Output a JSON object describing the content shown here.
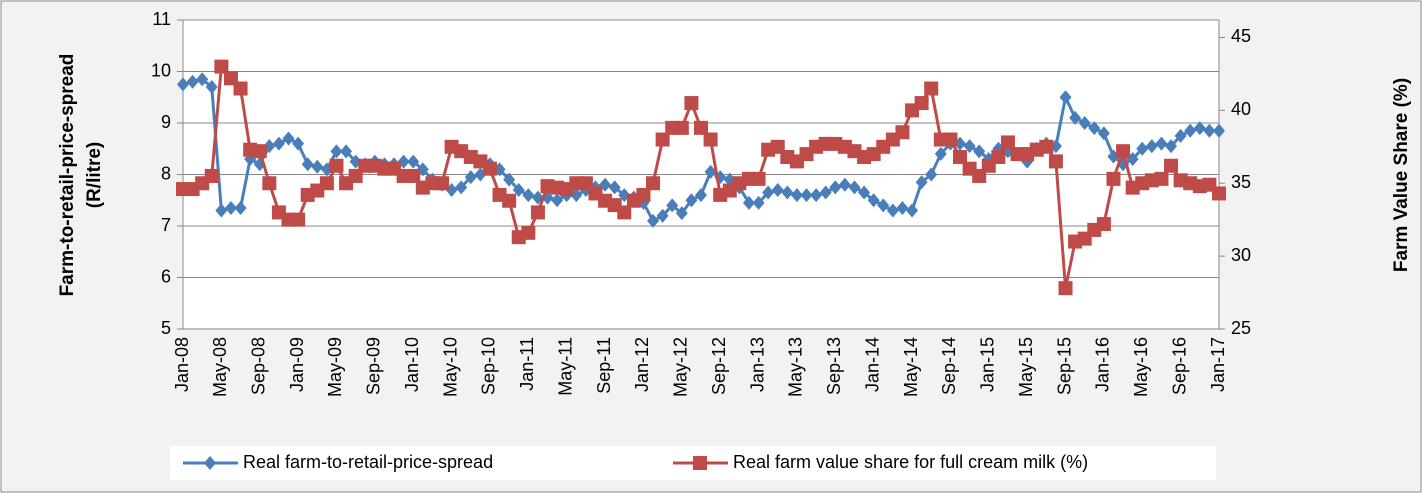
{
  "chart_data": {
    "type": "line",
    "categories": [
      "Jan-08",
      null,
      null,
      null,
      "May-08",
      null,
      null,
      null,
      "Sep-08",
      null,
      null,
      null,
      "Jan-09",
      null,
      null,
      null,
      "May-09",
      null,
      null,
      null,
      "Sep-09",
      null,
      null,
      null,
      "Jan-10",
      null,
      null,
      null,
      "May-10",
      null,
      null,
      null,
      "Sep-10",
      null,
      null,
      null,
      "Jan-11",
      null,
      null,
      null,
      "May-11",
      null,
      null,
      null,
      "Sep-11",
      null,
      null,
      null,
      "Jan-12",
      null,
      null,
      null,
      "May-12",
      null,
      null,
      null,
      "Sep-12",
      null,
      null,
      null,
      "Jan-13",
      null,
      null,
      null,
      "May-13",
      null,
      null,
      null,
      "Sep-13",
      null,
      null,
      null,
      "Jan-14",
      null,
      null,
      null,
      "May-14",
      null,
      null,
      null,
      "Sep-14",
      null,
      null,
      null,
      "Jan-15",
      null,
      null,
      null,
      "May-15",
      null,
      null,
      null,
      "Sep-15",
      null,
      null,
      null,
      "Jan-16",
      null,
      null,
      null,
      "May-16",
      null,
      null,
      null,
      "Sep-16",
      null,
      null,
      null,
      "Jan-17"
    ],
    "series": [
      {
        "name": "Real farm-to-retail-price-spread",
        "color": "#4a7ebb",
        "marker": "diamond",
        "axis": "y",
        "values": [
          9.75,
          9.8,
          9.85,
          9.7,
          7.3,
          7.35,
          7.35,
          8.3,
          8.2,
          8.55,
          8.6,
          8.7,
          8.6,
          8.2,
          8.15,
          8.1,
          8.45,
          8.45,
          8.25,
          8.2,
          8.25,
          8.2,
          8.2,
          8.25,
          8.25,
          8.1,
          7.9,
          7.8,
          7.7,
          7.75,
          7.95,
          8.0,
          8.2,
          8.1,
          7.9,
          7.7,
          7.6,
          7.55,
          7.55,
          7.5,
          7.6,
          7.6,
          7.7,
          7.75,
          7.8,
          7.75,
          7.6,
          7.55,
          7.45,
          7.1,
          7.2,
          7.4,
          7.25,
          7.5,
          7.6,
          8.05,
          7.95,
          7.9,
          7.75,
          7.45,
          7.45,
          7.65,
          7.7,
          7.65,
          7.6,
          7.6,
          7.6,
          7.65,
          7.75,
          7.8,
          7.75,
          7.65,
          7.5,
          7.4,
          7.3,
          7.35,
          7.3,
          7.85,
          8.0,
          8.4,
          8.6,
          8.6,
          8.55,
          8.45,
          8.3,
          8.5,
          8.45,
          8.4,
          8.25,
          8.5,
          8.6,
          8.55,
          9.5,
          9.1,
          9.0,
          8.9,
          8.8,
          8.35,
          8.2,
          8.3,
          8.5,
          8.55,
          8.6,
          8.55,
          8.75,
          8.85,
          8.9,
          8.85,
          8.85
        ]
      },
      {
        "name": "Real farm value share for full cream milk (%)",
        "color": "#be4b48",
        "marker": "square",
        "axis": "y2",
        "values": [
          34.6,
          34.6,
          35,
          35.5,
          43,
          42.2,
          41.5,
          37.3,
          37.2,
          35,
          33,
          32.5,
          32.5,
          34.2,
          34.5,
          35,
          36.2,
          35,
          35.5,
          36.2,
          36.2,
          36,
          36,
          35.5,
          35.5,
          34.7,
          35,
          35,
          37.5,
          37.2,
          36.8,
          36.5,
          36,
          34.2,
          33.8,
          31.3,
          31.6,
          33,
          34.8,
          34.7,
          34.6,
          35,
          35,
          34.3,
          33.8,
          33.5,
          33,
          33.8,
          34.2,
          35,
          38,
          38.8,
          38.8,
          40.5,
          38.8,
          38,
          34.2,
          34.5,
          35,
          35.3,
          35.3,
          37.3,
          37.5,
          36.8,
          36.5,
          37,
          37.5,
          37.7,
          37.7,
          37.5,
          37.2,
          36.8,
          37,
          37.5,
          38,
          38.5,
          40,
          40.5,
          41.5,
          38,
          38,
          36.8,
          36,
          35.5,
          36.2,
          36.8,
          37.8,
          37,
          37,
          37.3,
          37.5,
          36.5,
          27.8,
          31,
          31.2,
          31.8,
          32.2,
          35.3,
          37.2,
          34.7,
          35,
          35.2,
          35.3,
          36.2,
          35.2,
          35,
          34.8,
          34.9,
          34.3
        ]
      }
    ],
    "ylabel": [
      "Farm-to-retail-price-spread",
      "(R/litre)"
    ],
    "y2label": "Farm Value Share (%)",
    "ylim": [
      5,
      11
    ],
    "yticks": [
      5,
      6,
      7,
      8,
      9,
      10,
      11
    ],
    "y2lim": [
      25,
      46.2
    ],
    "y2ticks": [
      25,
      30,
      35,
      40,
      45
    ],
    "grid": true,
    "legend": "bottom"
  }
}
